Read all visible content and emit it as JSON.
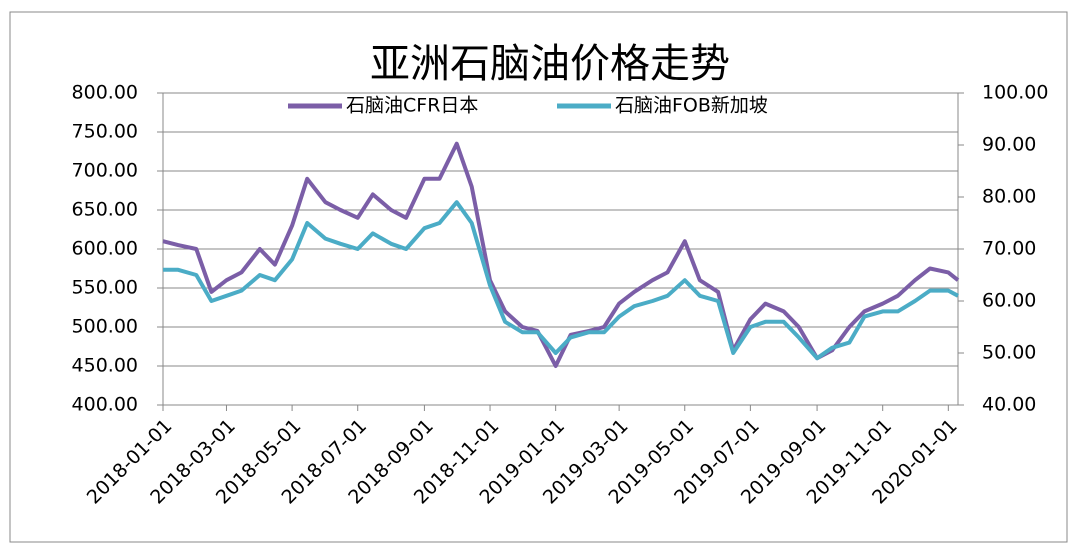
{
  "chart_data": {
    "type": "line",
    "title": "亚洲石脑油价格走势",
    "x": [
      "2018-01-01",
      "2018-01-15",
      "2018-02-01",
      "2018-02-15",
      "2018-03-01",
      "2018-03-15",
      "2018-04-01",
      "2018-04-15",
      "2018-05-01",
      "2018-05-15",
      "2018-06-01",
      "2018-06-15",
      "2018-07-01",
      "2018-07-15",
      "2018-08-01",
      "2018-08-15",
      "2018-09-01",
      "2018-09-15",
      "2018-10-01",
      "2018-10-15",
      "2018-11-01",
      "2018-11-15",
      "2018-12-01",
      "2018-12-15",
      "2019-01-01",
      "2019-01-15",
      "2019-02-01",
      "2019-02-15",
      "2019-03-01",
      "2019-03-15",
      "2019-04-01",
      "2019-04-15",
      "2019-05-01",
      "2019-05-15",
      "2019-06-01",
      "2019-06-15",
      "2019-07-01",
      "2019-07-15",
      "2019-08-01",
      "2019-08-15",
      "2019-09-01",
      "2019-09-15",
      "2019-10-01",
      "2019-10-15",
      "2019-11-01",
      "2019-11-15",
      "2019-12-01",
      "2019-12-15",
      "2020-01-01",
      "2020-01-10"
    ],
    "series": [
      {
        "name": "石脑油CFR日本",
        "color": "#7b5ea7",
        "values": [
          610,
          605,
          600,
          545,
          560,
          570,
          600,
          580,
          630,
          690,
          660,
          650,
          640,
          670,
          650,
          640,
          690,
          690,
          735,
          680,
          560,
          520,
          500,
          495,
          450,
          490,
          495,
          500,
          530,
          545,
          560,
          570,
          610,
          560,
          545,
          470,
          510,
          530,
          520,
          500,
          460,
          470,
          500,
          520,
          530,
          540,
          560,
          575,
          570,
          560
        ]
      },
      {
        "name": "石脑油FOB新加坡",
        "color": "#4bacc6",
        "axis": "y2",
        "values": [
          66,
          66,
          65,
          60,
          61,
          62,
          65,
          64,
          68,
          75,
          72,
          71,
          70,
          73,
          71,
          70,
          74,
          75,
          79,
          75,
          63,
          56,
          54,
          54,
          50,
          53,
          54,
          54,
          57,
          59,
          60,
          61,
          64,
          61,
          60,
          50,
          55,
          56,
          56,
          53,
          49,
          51,
          52,
          57,
          58,
          58,
          60,
          62,
          62,
          61
        ]
      }
    ],
    "xlim": [
      "2018-01-01",
      "2020-01-10"
    ],
    "xticks": [
      "2018-01-01",
      "2018-03-01",
      "2018-05-01",
      "2018-07-01",
      "2018-09-01",
      "2018-11-01",
      "2019-01-01",
      "2019-03-01",
      "2019-05-01",
      "2019-07-01",
      "2019-09-01",
      "2019-11-01",
      "2020-01-01"
    ],
    "ylim": [
      400,
      800
    ],
    "yticks": [
      {
        "value": 400,
        "label": "400.00"
      },
      {
        "value": 450,
        "label": "450.00"
      },
      {
        "value": 500,
        "label": "500.00"
      },
      {
        "value": 550,
        "label": "550.00"
      },
      {
        "value": 600,
        "label": "600.00"
      },
      {
        "value": 650,
        "label": "650.00"
      },
      {
        "value": 700,
        "label": "700.00"
      },
      {
        "value": 750,
        "label": "750.00"
      },
      {
        "value": 800,
        "label": "800.00"
      }
    ],
    "y2lim": [
      40,
      100
    ],
    "y2ticks": [
      {
        "value": 40,
        "label": "40.00"
      },
      {
        "value": 50,
        "label": "50.00"
      },
      {
        "value": 60,
        "label": "60.00"
      },
      {
        "value": 70,
        "label": "70.00"
      },
      {
        "value": 80,
        "label": "80.00"
      },
      {
        "value": 90,
        "label": "90.00"
      },
      {
        "value": 100,
        "label": "100.00"
      }
    ],
    "grid": true,
    "legend": "top"
  }
}
